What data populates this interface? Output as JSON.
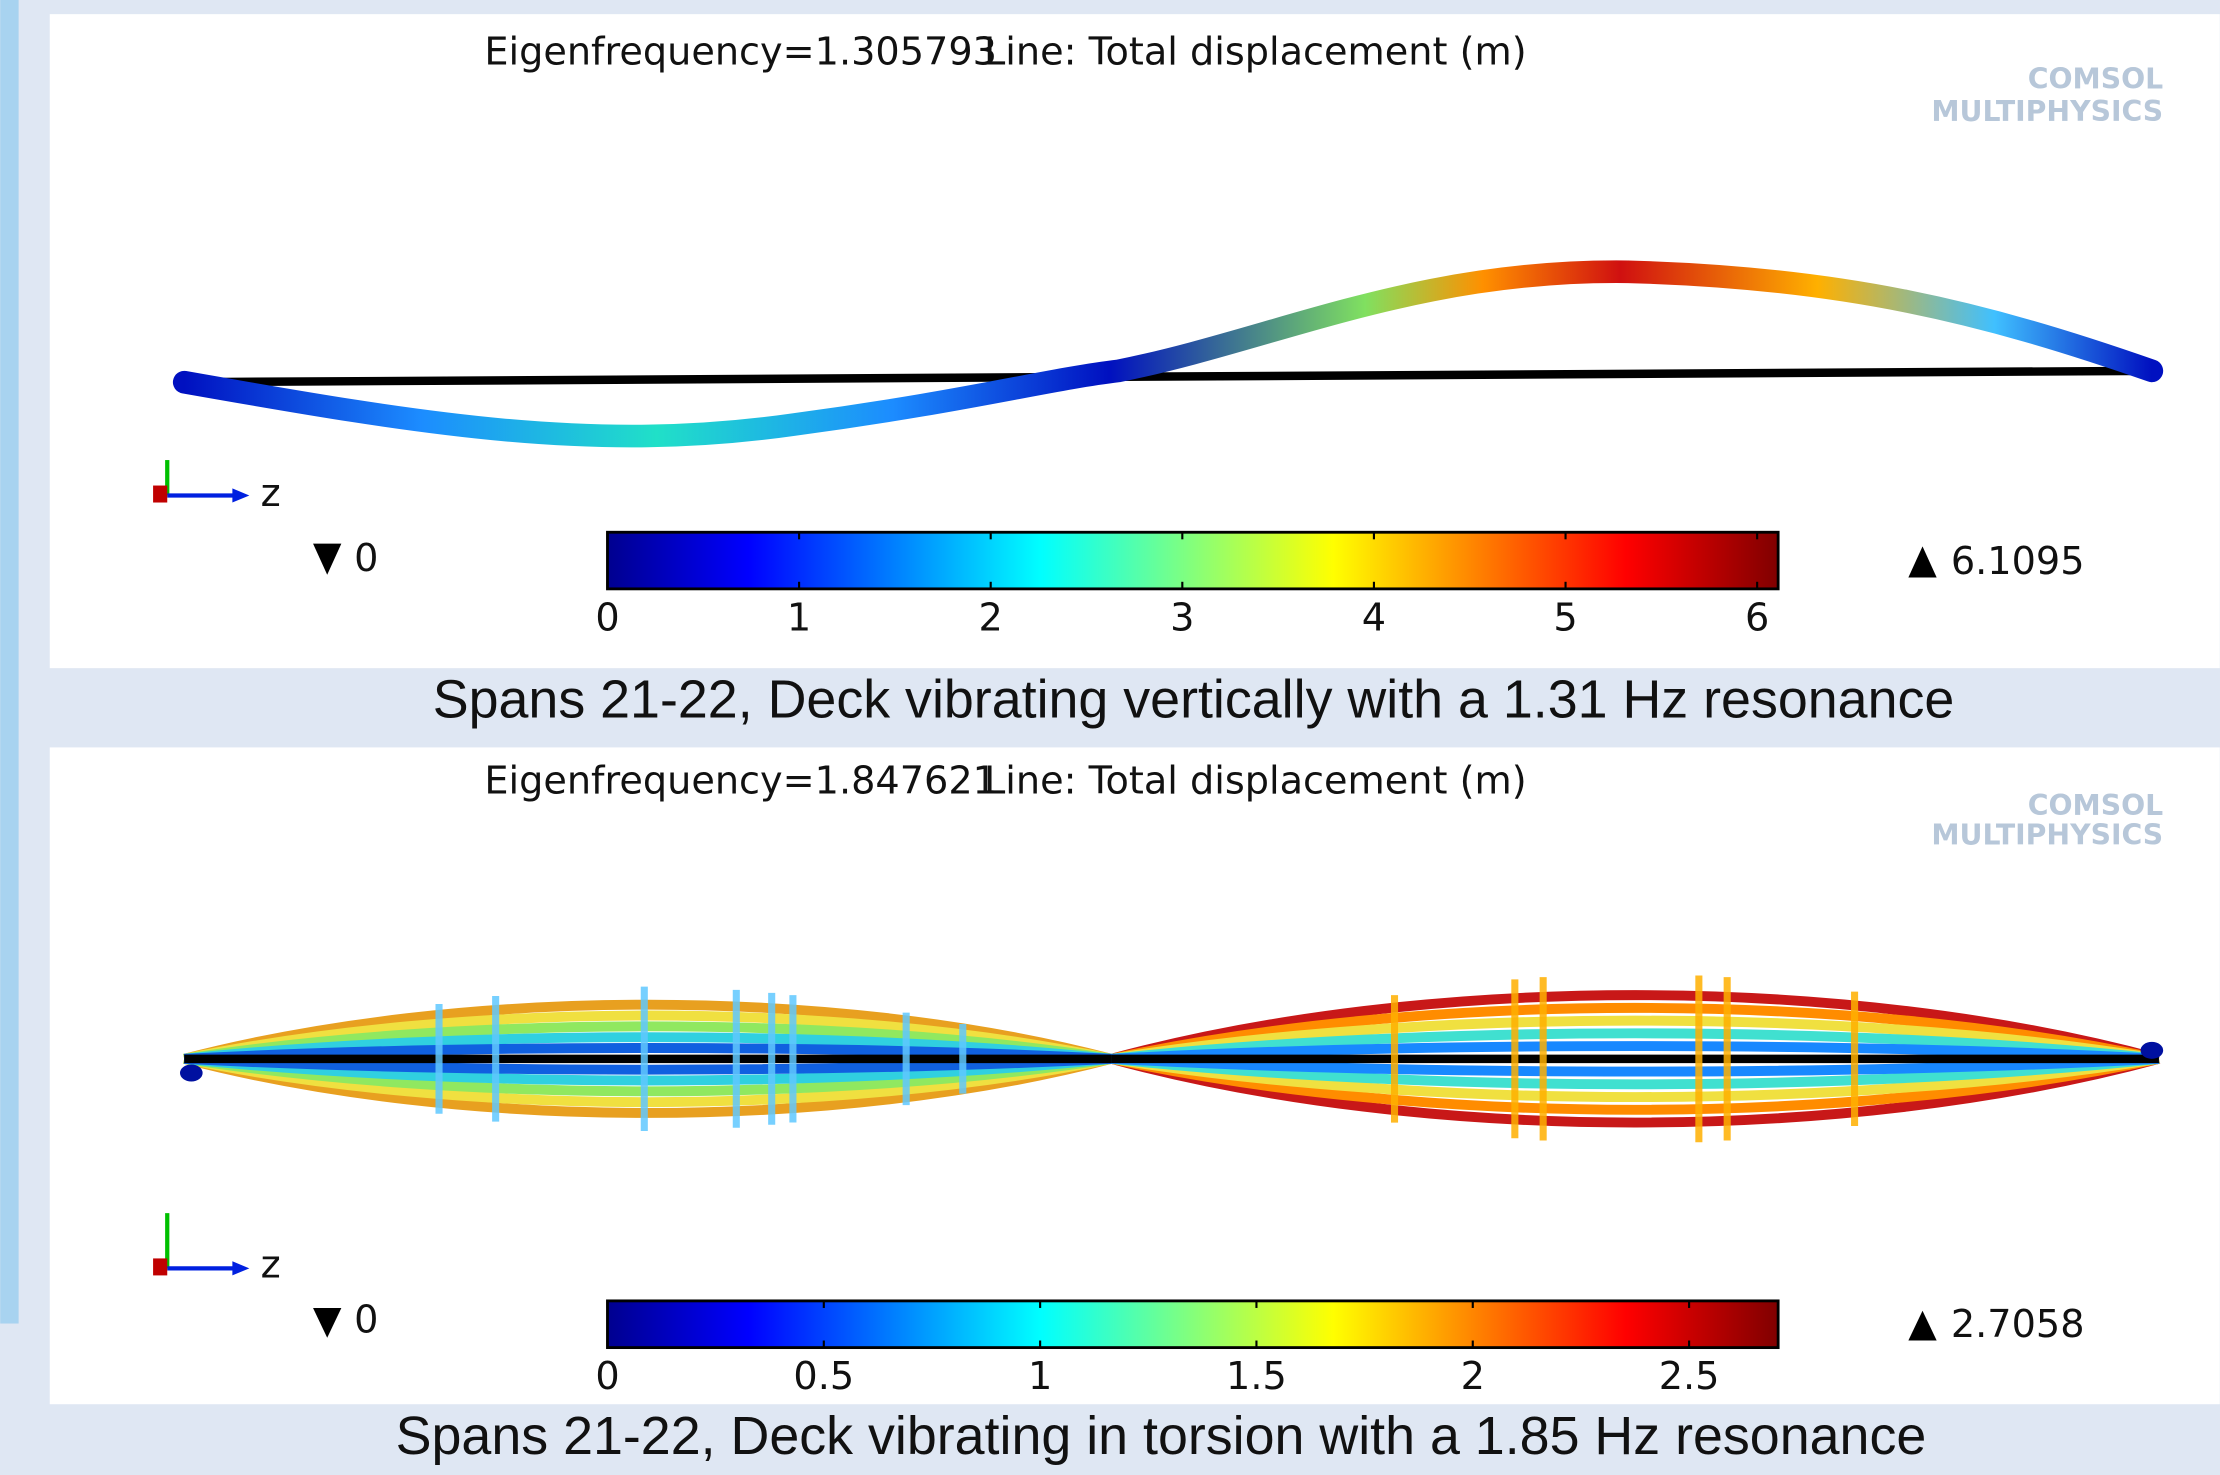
{
  "panels": [
    {
      "eigenfrequency_label": "Eigenfrequency=1.305793",
      "plot_label": "Line: Total displacement (m)",
      "logo": [
        "COMSOL",
        "MULTIPHYSICS"
      ],
      "axis_label": "z",
      "colorbar": {
        "min": 0,
        "max": 6.1095,
        "ticks": [
          0,
          1,
          2,
          3,
          4,
          5,
          6
        ]
      },
      "caption": "Spans 21-22, Deck vibrating vertically with a 1.31 Hz resonance"
    },
    {
      "eigenfrequency_label": "Eigenfrequency=1.847621",
      "plot_label": "Line: Total displacement (m)",
      "logo": [
        "COMSOL",
        "MULTIPHYSICS"
      ],
      "axis_label": "z",
      "colorbar": {
        "min": 0,
        "max": 2.7058,
        "ticks": [
          0,
          0.5,
          1,
          1.5,
          2,
          2.5
        ]
      },
      "caption": "Spans 21-22, Deck vibrating in torsion with a 1.85 Hz resonance"
    }
  ]
}
